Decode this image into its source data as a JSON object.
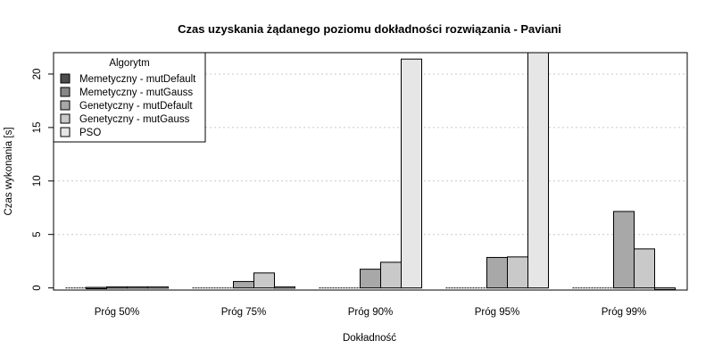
{
  "chart_data": {
    "type": "bar",
    "title": "Czas uzyskania żądanego poziomu dokładności rozwiązania - Paviani",
    "xlabel": "Dokładność",
    "ylabel": "Czas wykonania [s]",
    "categories": [
      "Próg 50%",
      "Próg 75%",
      "Próg 90%",
      "Próg 95%",
      "Próg 99%"
    ],
    "ylim": [
      -0.2,
      22
    ],
    "yticks": [
      0,
      5,
      10,
      15,
      20
    ],
    "grid": "horizontal-dotted",
    "legend": {
      "title": "Algorytm",
      "position": "top-left"
    },
    "series": [
      {
        "name": "Memetyczny - mutDefault",
        "color": "#4d4d4d",
        "values": [
          0,
          0,
          0,
          0,
          0
        ]
      },
      {
        "name": "Memetyczny - mutGauss",
        "color": "#878787",
        "values": [
          0.05,
          0,
          0,
          0,
          0
        ]
      },
      {
        "name": "Genetyczny - mutDefault",
        "color": "#a8a8a8",
        "values": [
          0.1,
          0.6,
          1.75,
          2.85,
          7.15
        ]
      },
      {
        "name": "Genetyczny - mutGauss",
        "color": "#c9c9c9",
        "values": [
          0.1,
          1.4,
          2.4,
          2.9,
          3.65
        ]
      },
      {
        "name": "PSO",
        "color": "#e6e6e6",
        "values": [
          0.1,
          0.1,
          21.4,
          22,
          -0.15
        ]
      }
    ]
  }
}
